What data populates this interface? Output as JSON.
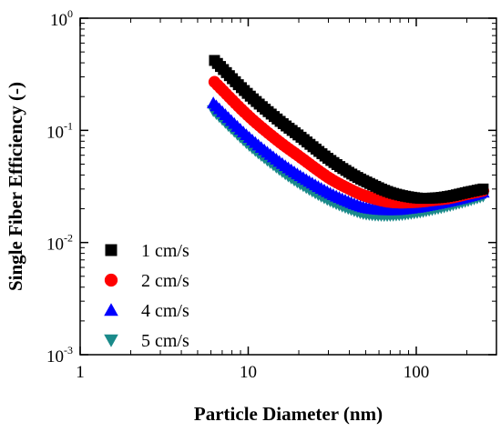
{
  "chart_data": {
    "type": "scatter",
    "title": "",
    "xlabel": "Particle Diameter (nm)",
    "ylabel": "Single Fiber Efficiency (-)",
    "xscale": "log",
    "yscale": "log",
    "xlim": [
      1,
      300
    ],
    "ylim": [
      0.001,
      1
    ],
    "x_ticks": [
      {
        "value": 1,
        "label": "1"
      },
      {
        "value": 10,
        "label": "10"
      },
      {
        "value": 100,
        "label": "100"
      }
    ],
    "y_ticks": [
      {
        "value": 0.001,
        "base": "10",
        "exp": "-3"
      },
      {
        "value": 0.01,
        "base": "10",
        "exp": "-2"
      },
      {
        "value": 0.1,
        "base": "10",
        "exp": "-1"
      },
      {
        "value": 1,
        "base": "10",
        "exp": "0"
      }
    ],
    "grid": false,
    "legend_position": "bottom-left",
    "series": [
      {
        "name": "1 cm/s",
        "marker": "square",
        "color": "#000000",
        "x": [
          6.3,
          10,
          15,
          20,
          30,
          40,
          50,
          70,
          100,
          130,
          160,
          200,
          250
        ],
        "y": [
          0.42,
          0.21,
          0.125,
          0.09,
          0.056,
          0.042,
          0.035,
          0.028,
          0.025,
          0.025,
          0.026,
          0.028,
          0.03
        ]
      },
      {
        "name": "2 cm/s",
        "marker": "circle",
        "color": "#ff0000",
        "x": [
          6.3,
          10,
          15,
          20,
          30,
          40,
          50,
          70,
          100,
          130,
          160,
          200,
          250
        ],
        "y": [
          0.27,
          0.135,
          0.081,
          0.059,
          0.038,
          0.03,
          0.026,
          0.023,
          0.023,
          0.024,
          0.025,
          0.027,
          0.029
        ]
      },
      {
        "name": "4 cm/s",
        "marker": "triangle-up",
        "color": "#0000ff",
        "x": [
          6.2,
          10,
          15,
          20,
          30,
          40,
          50,
          70,
          100,
          130,
          160,
          200,
          250
        ],
        "y": [
          0.175,
          0.088,
          0.054,
          0.04,
          0.028,
          0.023,
          0.0205,
          0.0195,
          0.0205,
          0.022,
          0.0235,
          0.0255,
          0.028
        ]
      },
      {
        "name": "5 cm/s",
        "marker": "triangle-down",
        "color": "#1a8a8a",
        "x": [
          6.2,
          10,
          15,
          20,
          30,
          40,
          50,
          70,
          100,
          130,
          160,
          200,
          250
        ],
        "y": [
          0.15,
          0.075,
          0.046,
          0.034,
          0.024,
          0.02,
          0.018,
          0.0175,
          0.0185,
          0.02,
          0.0215,
          0.0235,
          0.026
        ]
      }
    ]
  }
}
